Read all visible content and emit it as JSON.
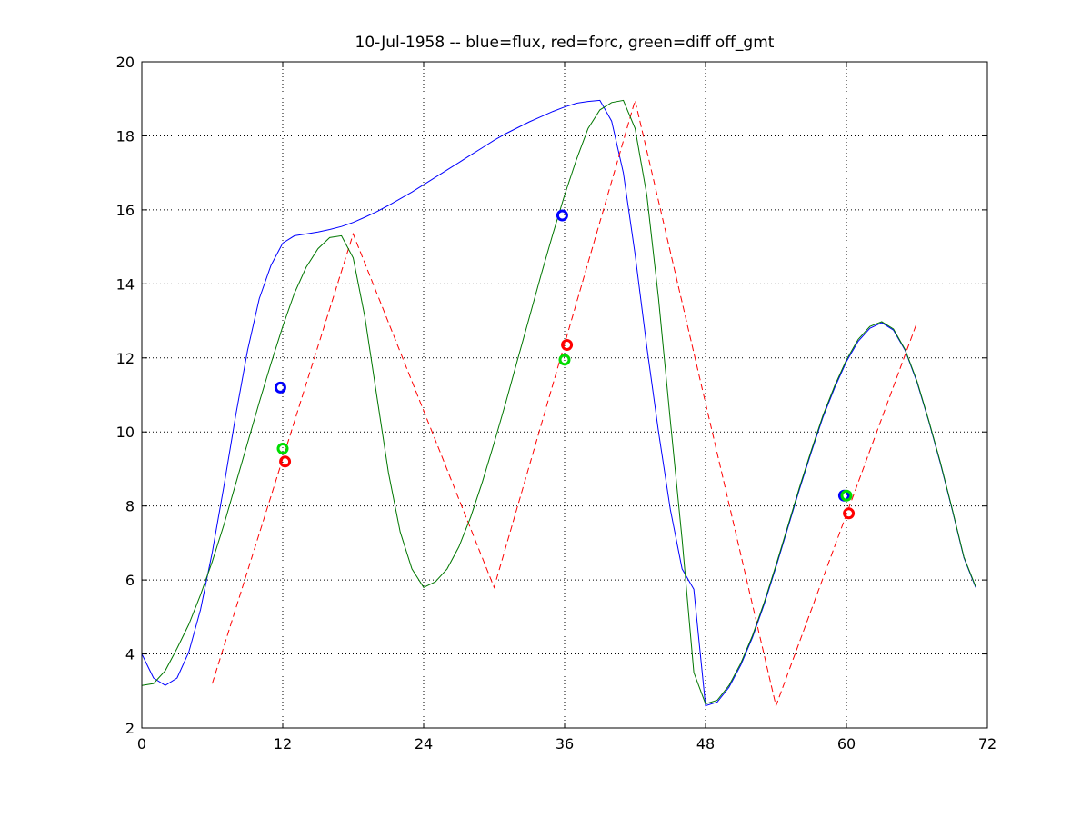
{
  "chart_data": {
    "type": "line",
    "title": "10-Jul-1958 -- blue=flux, red=forc, green=diff off_gmt",
    "xlabel": "",
    "ylabel": "",
    "xlim": [
      0,
      72
    ],
    "ylim": [
      2,
      20
    ],
    "xticks": [
      0,
      12,
      24,
      36,
      48,
      60,
      72
    ],
    "yticks": [
      2,
      4,
      6,
      8,
      10,
      12,
      14,
      16,
      18,
      20
    ],
    "grid": true,
    "series": [
      {
        "color": "#0000ff",
        "style": "solid",
        "x": [
          0,
          1,
          2,
          3,
          4,
          5,
          6,
          7,
          8,
          9,
          10,
          11,
          12,
          13,
          14,
          15,
          16,
          17,
          18,
          19,
          20,
          21,
          22,
          23,
          24,
          25,
          26,
          27,
          28,
          29,
          30,
          31,
          32,
          33,
          34,
          35,
          36,
          37,
          38,
          39,
          40,
          41,
          42,
          43,
          44,
          45,
          46,
          47,
          48,
          49,
          50,
          51,
          52,
          53,
          54,
          55,
          56,
          57,
          58,
          59,
          60,
          61,
          62,
          63,
          64,
          65,
          66,
          67,
          68,
          69,
          70,
          71
        ],
        "y": [
          4.0,
          3.35,
          3.15,
          3.35,
          4.05,
          5.2,
          6.75,
          8.55,
          10.45,
          12.2,
          13.6,
          14.5,
          15.1,
          15.3,
          15.35,
          15.4,
          15.47,
          15.55,
          15.66,
          15.8,
          15.95,
          16.12,
          16.3,
          16.48,
          16.68,
          16.88,
          17.08,
          17.28,
          17.48,
          17.68,
          17.88,
          18.06,
          18.22,
          18.38,
          18.52,
          18.66,
          18.78,
          18.88,
          18.93,
          18.96,
          18.4,
          17.0,
          14.8,
          12.3,
          10.0,
          7.9,
          6.3,
          5.75,
          2.6,
          2.7,
          3.1,
          3.7,
          4.45,
          5.35,
          6.35,
          7.4,
          8.45,
          9.45,
          10.4,
          11.2,
          11.9,
          12.45,
          12.8,
          12.95,
          12.75,
          12.2,
          11.35,
          10.3,
          9.15,
          7.9,
          6.6,
          5.8
        ]
      },
      {
        "color": "#ff0000",
        "style": "dashed",
        "x": [
          6,
          18,
          30,
          42,
          54,
          66
        ],
        "y": [
          3.2,
          15.35,
          5.8,
          18.96,
          2.6,
          12.95
        ]
      },
      {
        "color": "#007700",
        "style": "solid",
        "x": [
          0,
          1,
          2,
          3,
          4,
          5,
          6,
          7,
          8,
          9,
          10,
          11,
          12,
          13,
          14,
          15,
          16,
          17,
          18,
          19,
          20,
          21,
          22,
          23,
          24,
          25,
          26,
          27,
          28,
          29,
          30,
          31,
          32,
          33,
          34,
          35,
          36,
          37,
          38,
          39,
          40,
          41,
          42,
          43,
          44,
          45,
          46,
          47,
          48,
          49,
          50,
          51,
          52,
          53,
          54,
          55,
          56,
          57,
          58,
          59,
          60,
          61,
          62,
          63,
          64,
          65,
          66,
          67,
          68,
          69,
          70,
          71
        ],
        "y": [
          3.15,
          3.2,
          3.55,
          4.15,
          4.8,
          5.6,
          6.5,
          7.5,
          8.6,
          9.7,
          10.8,
          11.85,
          12.85,
          13.75,
          14.45,
          14.95,
          15.25,
          15.3,
          14.7,
          13.1,
          11.0,
          8.9,
          7.3,
          6.3,
          5.8,
          5.95,
          6.3,
          6.9,
          7.7,
          8.65,
          9.7,
          10.8,
          11.95,
          13.1,
          14.25,
          15.35,
          16.4,
          17.35,
          18.2,
          18.7,
          18.9,
          18.96,
          18.2,
          16.4,
          13.6,
          10.3,
          7.1,
          3.5,
          2.65,
          2.75,
          3.15,
          3.75,
          4.5,
          5.4,
          6.4,
          7.45,
          8.5,
          9.5,
          10.45,
          11.25,
          11.95,
          12.5,
          12.85,
          12.98,
          12.78,
          12.22,
          11.38,
          10.32,
          9.18,
          7.92,
          6.62,
          5.82
        ]
      }
    ],
    "markers": [
      {
        "color": "#0000ff",
        "x": 11.8,
        "y": 11.2
      },
      {
        "color": "#00dd00",
        "x": 12.0,
        "y": 9.55
      },
      {
        "color": "#ff0000",
        "x": 12.2,
        "y": 9.2
      },
      {
        "color": "#0000ff",
        "x": 35.8,
        "y": 15.85
      },
      {
        "color": "#00dd00",
        "x": 36.0,
        "y": 11.95
      },
      {
        "color": "#ff0000",
        "x": 36.2,
        "y": 12.35
      },
      {
        "color": "#0000ff",
        "x": 59.8,
        "y": 8.28
      },
      {
        "color": "#00dd00",
        "x": 60.0,
        "y": 8.28
      },
      {
        "color": "#ff0000",
        "x": 60.2,
        "y": 7.8
      }
    ]
  }
}
